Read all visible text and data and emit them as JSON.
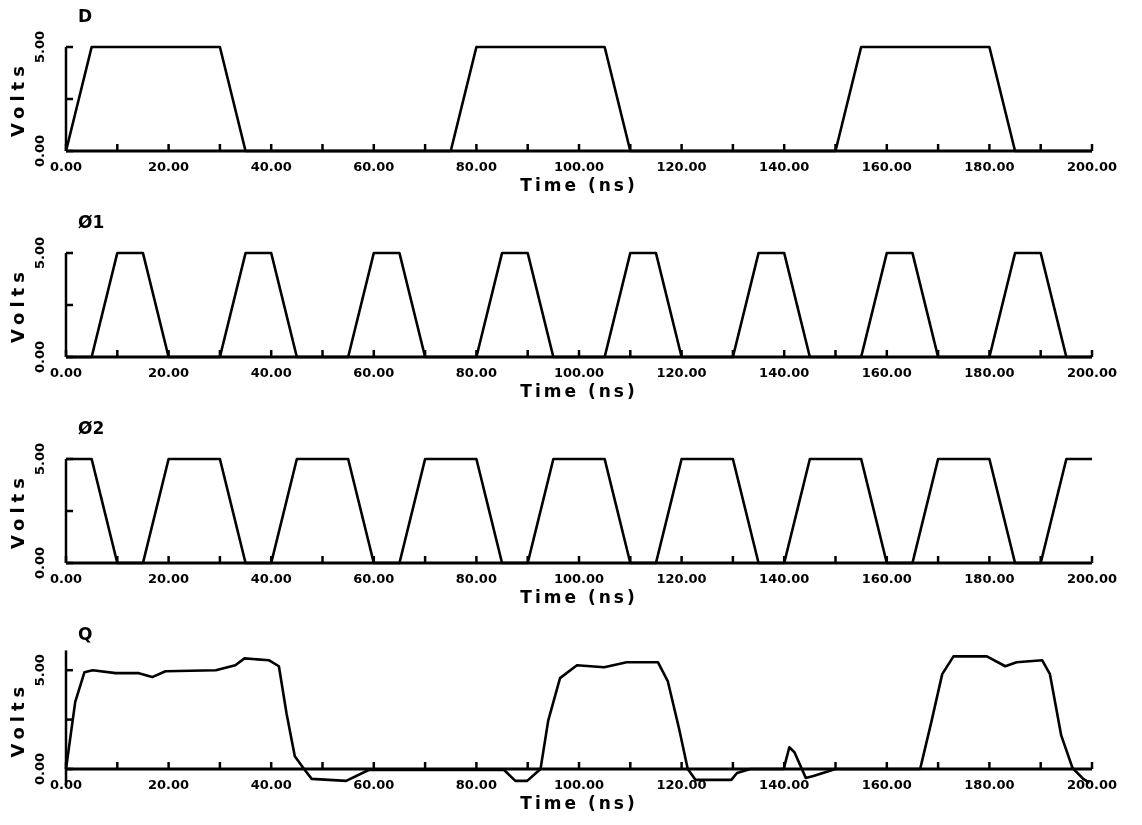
{
  "chart_data": [
    {
      "type": "line",
      "title": "D",
      "xlabel": "Time (ns)",
      "ylabel": "Volts",
      "color": "#000000",
      "line_style": "solid",
      "marker": "none",
      "grid": false,
      "xlim": [
        0,
        200
      ],
      "ylim": [
        0,
        5
      ],
      "xticks": [
        {
          "value": 0,
          "label": "0.00"
        },
        {
          "value": 10,
          "label": null
        },
        {
          "value": 20,
          "label": "20.00"
        },
        {
          "value": 30,
          "label": null
        },
        {
          "value": 40,
          "label": "40.00"
        },
        {
          "value": 50,
          "label": null
        },
        {
          "value": 60,
          "label": "60.00"
        },
        {
          "value": 70,
          "label": null
        },
        {
          "value": 80,
          "label": "80.00"
        },
        {
          "value": 90,
          "label": null
        },
        {
          "value": 100,
          "label": "100.00"
        },
        {
          "value": 110,
          "label": null
        },
        {
          "value": 120,
          "label": "120.00"
        },
        {
          "value": 130,
          "label": null
        },
        {
          "value": 140,
          "label": "140.00"
        },
        {
          "value": 150,
          "label": null
        },
        {
          "value": 160,
          "label": "160.00"
        },
        {
          "value": 170,
          "label": null
        },
        {
          "value": 180,
          "label": "180.00"
        },
        {
          "value": 190,
          "label": null
        },
        {
          "value": 200,
          "label": "200.00"
        }
      ],
      "yticks": [
        {
          "value": 0,
          "label": "0.00"
        },
        {
          "value": 2.5,
          "label": null
        },
        {
          "value": 5,
          "label": "5.00"
        }
      ],
      "x": [
        0,
        5,
        30,
        35,
        75,
        80,
        105,
        110,
        150,
        155,
        180,
        185,
        200
      ],
      "values": [
        0,
        5,
        5,
        0,
        0,
        5,
        5,
        0,
        0,
        5,
        5,
        0,
        0
      ]
    },
    {
      "type": "line",
      "title": "Ø1",
      "xlabel": "Time (ns)",
      "ylabel": "Volts",
      "color": "#000000",
      "line_style": "solid",
      "marker": "none",
      "grid": false,
      "xlim": [
        0,
        200
      ],
      "ylim": [
        0,
        5
      ],
      "xticks": [
        {
          "value": 0,
          "label": "0.00"
        },
        {
          "value": 10,
          "label": null
        },
        {
          "value": 20,
          "label": "20.00"
        },
        {
          "value": 30,
          "label": null
        },
        {
          "value": 40,
          "label": "40.00"
        },
        {
          "value": 50,
          "label": null
        },
        {
          "value": 60,
          "label": "60.00"
        },
        {
          "value": 70,
          "label": null
        },
        {
          "value": 80,
          "label": "80.00"
        },
        {
          "value": 90,
          "label": null
        },
        {
          "value": 100,
          "label": "100.00"
        },
        {
          "value": 110,
          "label": null
        },
        {
          "value": 120,
          "label": "120.00"
        },
        {
          "value": 130,
          "label": null
        },
        {
          "value": 140,
          "label": "140.00"
        },
        {
          "value": 150,
          "label": null
        },
        {
          "value": 160,
          "label": "160.00"
        },
        {
          "value": 170,
          "label": null
        },
        {
          "value": 180,
          "label": "180.00"
        },
        {
          "value": 190,
          "label": null
        },
        {
          "value": 200,
          "label": "200.00"
        }
      ],
      "yticks": [
        {
          "value": 0,
          "label": "0.00"
        },
        {
          "value": 2.5,
          "label": null
        },
        {
          "value": 5,
          "label": "5.00"
        }
      ],
      "x": [
        0,
        5,
        10,
        15,
        20,
        30,
        35,
        40,
        45,
        55,
        60,
        65,
        70,
        80,
        85,
        90,
        95,
        105,
        110,
        115,
        120,
        130,
        135,
        140,
        145,
        155,
        160,
        165,
        170,
        180,
        185,
        190,
        195,
        200
      ],
      "values": [
        0,
        0,
        5,
        5,
        0,
        0,
        5,
        5,
        0,
        0,
        5,
        5,
        0,
        0,
        5,
        5,
        0,
        0,
        5,
        5,
        0,
        0,
        5,
        5,
        0,
        0,
        5,
        5,
        0,
        0,
        5,
        5,
        0,
        0
      ]
    },
    {
      "type": "line",
      "title": "Ø2",
      "xlabel": "Time (ns)",
      "ylabel": "Volts",
      "color": "#000000",
      "line_style": "solid",
      "marker": "none",
      "grid": false,
      "xlim": [
        0,
        200
      ],
      "ylim": [
        0,
        5
      ],
      "xticks": [
        {
          "value": 0,
          "label": "0.00"
        },
        {
          "value": 10,
          "label": null
        },
        {
          "value": 20,
          "label": "20.00"
        },
        {
          "value": 30,
          "label": null
        },
        {
          "value": 40,
          "label": "40.00"
        },
        {
          "value": 50,
          "label": null
        },
        {
          "value": 60,
          "label": "60.00"
        },
        {
          "value": 70,
          "label": null
        },
        {
          "value": 80,
          "label": "80.00"
        },
        {
          "value": 90,
          "label": null
        },
        {
          "value": 100,
          "label": "100.00"
        },
        {
          "value": 110,
          "label": null
        },
        {
          "value": 120,
          "label": "120.00"
        },
        {
          "value": 130,
          "label": null
        },
        {
          "value": 140,
          "label": "140.00"
        },
        {
          "value": 150,
          "label": null
        },
        {
          "value": 160,
          "label": "160.00"
        },
        {
          "value": 170,
          "label": null
        },
        {
          "value": 180,
          "label": "180.00"
        },
        {
          "value": 190,
          "label": null
        },
        {
          "value": 200,
          "label": "200.00"
        }
      ],
      "yticks": [
        {
          "value": 0,
          "label": "0.00"
        },
        {
          "value": 2.5,
          "label": null
        },
        {
          "value": 5,
          "label": "5.00"
        }
      ],
      "x": [
        0,
        5,
        10,
        15,
        20,
        30,
        35,
        40,
        45,
        55,
        60,
        65,
        70,
        80,
        85,
        90,
        95,
        105,
        110,
        115,
        120,
        130,
        135,
        140,
        145,
        155,
        160,
        165,
        170,
        180,
        185,
        190,
        195,
        200
      ],
      "values": [
        5,
        5,
        0,
        0,
        5,
        5,
        0,
        0,
        5,
        5,
        0,
        0,
        5,
        5,
        0,
        0,
        5,
        5,
        0,
        0,
        5,
        5,
        0,
        0,
        5,
        5,
        0,
        0,
        5,
        5,
        0,
        0,
        5,
        5
      ]
    },
    {
      "type": "line",
      "title": "Q",
      "xlabel": "Time (ns)",
      "ylabel": "Volts",
      "color": "#000000",
      "line_style": "solid",
      "marker": "none",
      "grid": false,
      "xlim": [
        0,
        200
      ],
      "ylim": [
        -0.8,
        6
      ],
      "xticks": [
        {
          "value": 0,
          "label": "0.00"
        },
        {
          "value": 10,
          "label": null
        },
        {
          "value": 20,
          "label": "20.00"
        },
        {
          "value": 30,
          "label": null
        },
        {
          "value": 40,
          "label": "40.00"
        },
        {
          "value": 50,
          "label": null
        },
        {
          "value": 60,
          "label": "60.00"
        },
        {
          "value": 70,
          "label": null
        },
        {
          "value": 80,
          "label": "80.00"
        },
        {
          "value": 90,
          "label": null
        },
        {
          "value": 100,
          "label": "100.00"
        },
        {
          "value": 110,
          "label": null
        },
        {
          "value": 120,
          "label": "120.00"
        },
        {
          "value": 130,
          "label": null
        },
        {
          "value": 140,
          "label": "140.00"
        },
        {
          "value": 150,
          "label": null
        },
        {
          "value": 160,
          "label": "160.00"
        },
        {
          "value": 170,
          "label": null
        },
        {
          "value": 180,
          "label": "180.00"
        },
        {
          "value": 190,
          "label": null
        },
        {
          "value": 200,
          "label": "200.00"
        }
      ],
      "yticks": [
        {
          "value": 0,
          "label": "0.00"
        },
        {
          "value": 2.5,
          "label": null
        },
        {
          "value": 5,
          "label": "5.00"
        }
      ],
      "x": [
        0,
        1.8,
        3.6,
        5.2,
        9.7,
        14.2,
        16.8,
        19.4,
        29.2,
        33,
        34.8,
        39.6,
        41.5,
        43,
        44.6,
        46.4,
        47.9,
        54.6,
        59,
        85.4,
        87.6,
        89.9,
        92.5,
        94,
        96.3,
        99.6,
        104.9,
        109.3,
        115.4,
        117.3,
        119.5,
        121.2,
        122.7,
        129.7,
        130.8,
        133.4,
        139.9,
        141,
        142,
        144.2,
        145.7,
        150,
        166.5,
        168.7,
        170.8,
        173,
        179.5,
        183.1,
        185.3,
        190.3,
        191.8,
        194,
        196.2,
        198.3,
        199.5
      ],
      "values": [
        0,
        3.4,
        4.9,
        5,
        4.85,
        4.85,
        4.65,
        4.95,
        5,
        5.25,
        5.6,
        5.5,
        5.2,
        2.8,
        0.65,
        0,
        -0.5,
        -0.6,
        -0.05,
        -0.05,
        -0.6,
        -0.6,
        0,
        2.45,
        4.6,
        5.25,
        5.15,
        5.4,
        5.4,
        4.45,
        2.05,
        0,
        -0.55,
        -0.55,
        -0.2,
        0,
        0,
        1.1,
        0.85,
        -0.45,
        -0.35,
        0,
        0,
        2.4,
        4.8,
        5.7,
        5.7,
        5.2,
        5.4,
        5.5,
        4.8,
        1.7,
        0.05,
        -0.5,
        -0.7
      ]
    }
  ]
}
